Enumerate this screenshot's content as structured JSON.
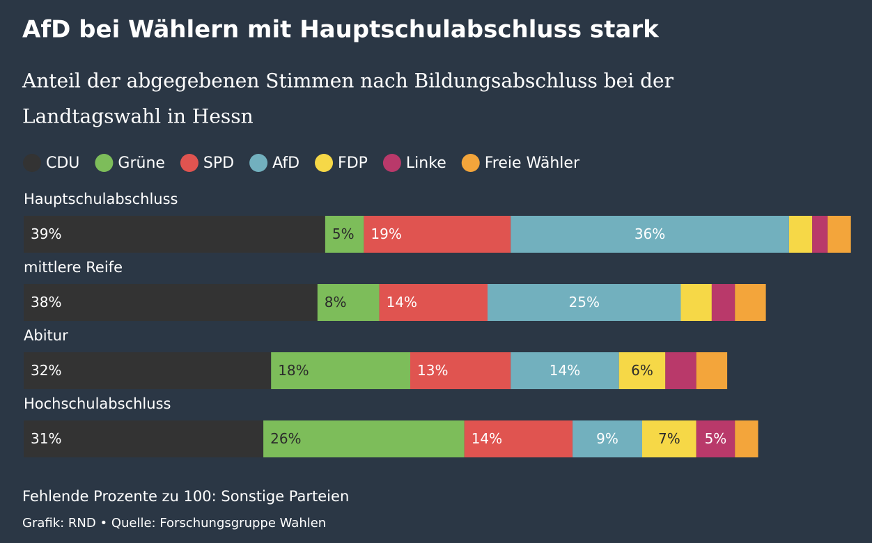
{
  "chart_data": {
    "type": "stacked-bar-horizontal",
    "title": "AfD bei Wählern mit Hauptschulabschluss stark",
    "subtitle": [
      "Anteil der abgegebenen Stimmen nach Bildungsabschluss bei der",
      "Landtagswahl in Hessn"
    ],
    "categories": [
      "Hauptschulabschluss",
      "mittlere Reife",
      "Abitur",
      "Hochschulabschluss"
    ],
    "series": [
      {
        "name": "CDU",
        "color": "#333333",
        "values": [
          39,
          38,
          32,
          31
        ],
        "value_labels": [
          "39%",
          "38%",
          "32%",
          "31%"
        ]
      },
      {
        "name": "Grüne",
        "color": "#7dbd5a",
        "values": [
          5,
          8,
          18,
          26
        ],
        "value_labels": [
          "5%",
          "8%",
          "18%",
          "26%"
        ]
      },
      {
        "name": "SPD",
        "color": "#e05450",
        "values": [
          19,
          14,
          13,
          14
        ],
        "value_labels": [
          "19%",
          "14%",
          "13%",
          "14%"
        ]
      },
      {
        "name": "AfD",
        "color": "#72b0be",
        "values": [
          36,
          25,
          14,
          9
        ],
        "value_labels": [
          "36%",
          "25%",
          "14%",
          "9%"
        ]
      },
      {
        "name": "FDP",
        "color": "#f6d847",
        "values": [
          3,
          4,
          6,
          7
        ],
        "value_labels": [
          null,
          null,
          "6%",
          "7%"
        ]
      },
      {
        "name": "Linke",
        "color": "#b9396a",
        "values": [
          2,
          3,
          4,
          5
        ],
        "value_labels": [
          null,
          null,
          null,
          "5%"
        ]
      },
      {
        "name": "Freie Wähler",
        "color": "#f3a53b",
        "values": [
          3,
          4,
          4,
          3
        ],
        "value_labels": [
          null,
          null,
          null,
          null
        ]
      }
    ],
    "footnote": "Fehlende Prozente zu 100: Sonstige Parteien",
    "source": "Grafik: RND • Quelle: Forschungsgruppe Wahlen"
  }
}
